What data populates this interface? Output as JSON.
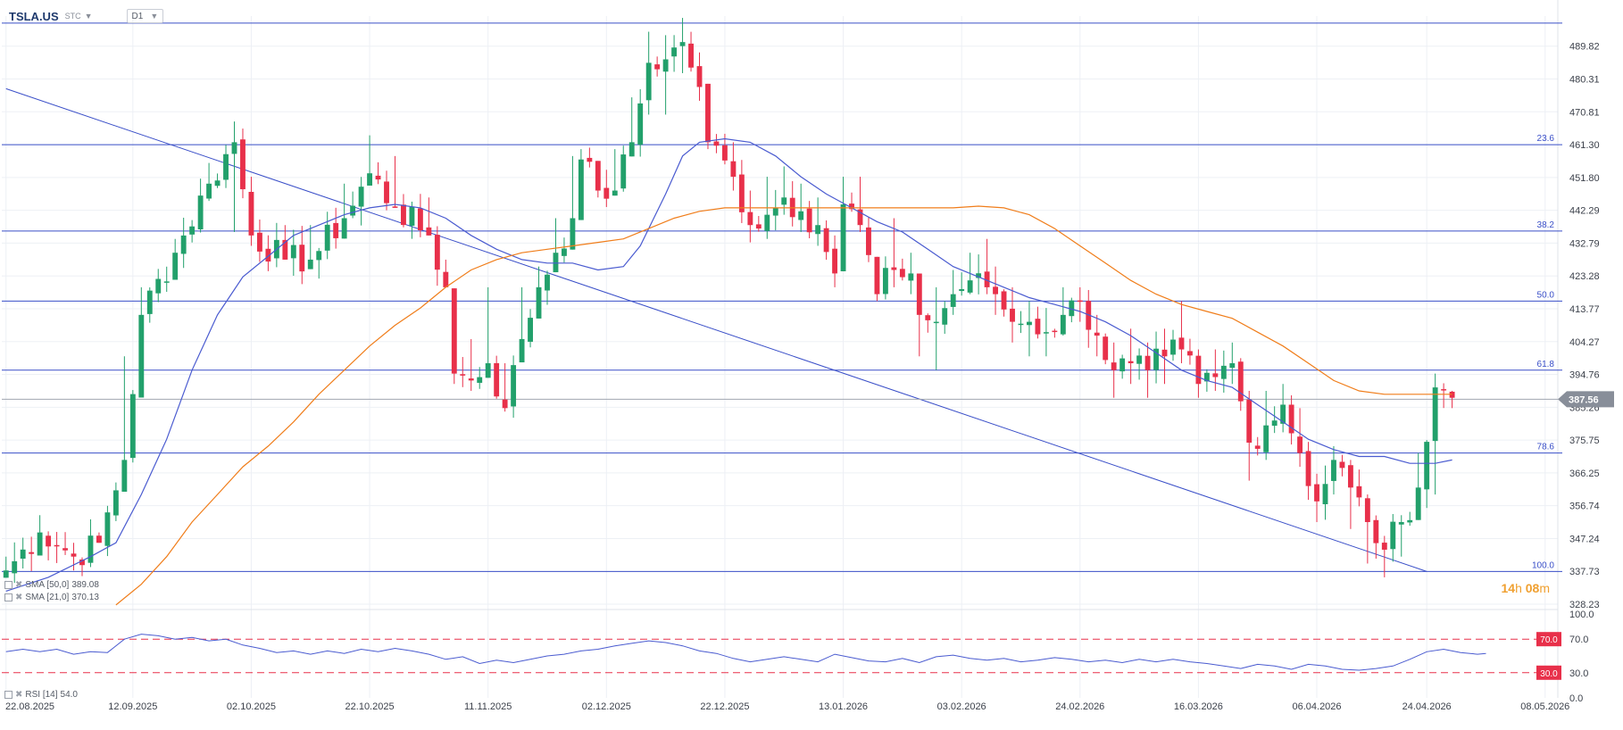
{
  "instrument": {
    "symbol": "TSLA.US",
    "source": "STC",
    "timeframe": "D1"
  },
  "countdown": {
    "hours": "14",
    "h_unit": "h",
    "minutes": "08",
    "m_unit": "m"
  },
  "colors": {
    "bull": "#22a06b",
    "bear": "#e8304a",
    "sma_fast": "#4a5bd0",
    "sma_slow": "#f07d1a",
    "fib_lines": "#3a4fc8",
    "grid": "#edf0f5",
    "price_tag": "#888e99",
    "rsi_line": "#4a5bd0",
    "rsi_level": "#e8304a"
  },
  "legend": {
    "sma50": {
      "label": "SMA [50,0]",
      "value": "389.08"
    },
    "sma20": {
      "label": "SMA [21,0]",
      "value": "370.13"
    },
    "rsi": {
      "label": "RSI [14]",
      "value": "54.0"
    }
  },
  "chart_data": [
    {
      "type": "candlestick",
      "price_axis": {
        "ticks": [
          489.82,
          480.31,
          470.81,
          461.3,
          451.8,
          442.29,
          432.79,
          423.28,
          413.77,
          404.27,
          394.76,
          385.26,
          375.75,
          366.25,
          356.74,
          347.24,
          337.73,
          328.23
        ],
        "ylim": [
          328.23,
          497.5
        ]
      },
      "last_price": 387.56,
      "x_axis": {
        "date_labels": [
          "22.08.2025",
          "12.09.2025",
          "02.10.2025",
          "22.10.2025",
          "11.11.2025",
          "02.12.2025",
          "22.12.2025",
          "13.01.2026",
          "03.02.2026",
          "24.02.2026",
          "16.03.2026",
          "06.04.2026",
          "24.04.2026",
          "08.05.2026"
        ],
        "label_bar_index": [
          0,
          15,
          29,
          43,
          57,
          71,
          85,
          99,
          113,
          127,
          141,
          155,
          168,
          182
        ],
        "bar_count": 172,
        "total_slots": 184
      },
      "fibonacci": [
        {
          "level": "23.6",
          "price": 461.3
        },
        {
          "level": "38.2",
          "price": 436.3
        },
        {
          "level": "50.0",
          "price": 416.0
        },
        {
          "level": "61.8",
          "price": 396.0
        },
        {
          "level": "78.6",
          "price": 372.0
        },
        {
          "level": "100.0",
          "price": 337.7
        }
      ],
      "top_line_price": 496.5,
      "trend_line": {
        "start": [
          0,
          477.5
        ],
        "end": [
          168,
          337.7
        ]
      },
      "anchors": [
        [
          0,
          338,
          342,
          338
        ],
        [
          4,
          349,
          354,
          349
        ],
        [
          8,
          342,
          346,
          338
        ],
        [
          11,
          346,
          349,
          346
        ],
        [
          14,
          370,
          400,
          370
        ],
        [
          16,
          412,
          420,
          412
        ],
        [
          20,
          430,
          434,
          430
        ],
        [
          24,
          450,
          456,
          445
        ],
        [
          27,
          462,
          468,
          436
        ],
        [
          29,
          435,
          452,
          432
        ],
        [
          33,
          428,
          438,
          428
        ],
        [
          36,
          428,
          438,
          428
        ],
        [
          40,
          440,
          450,
          440
        ],
        [
          43,
          453,
          464,
          453
        ],
        [
          46,
          443,
          458,
          443
        ],
        [
          50,
          435,
          446,
          435
        ],
        [
          52,
          420,
          428,
          420
        ],
        [
          53,
          395,
          400,
          392
        ],
        [
          55,
          393,
          405,
          390
        ],
        [
          57,
          398,
          420,
          398
        ],
        [
          59,
          385,
          398,
          384
        ],
        [
          61,
          405,
          420,
          405
        ],
        [
          63,
          420,
          426,
          420
        ],
        [
          65,
          430,
          440,
          430
        ],
        [
          67,
          440,
          458,
          440
        ],
        [
          68,
          457,
          460,
          455
        ],
        [
          70,
          448,
          455,
          446
        ],
        [
          72,
          448,
          460,
          448
        ],
        [
          74,
          462,
          475,
          460
        ],
        [
          76,
          485,
          494,
          470
        ],
        [
          78,
          486,
          493,
          470
        ],
        [
          80,
          491,
          498,
          482
        ],
        [
          82,
          478,
          488,
          474
        ],
        [
          83,
          462,
          466,
          460
        ],
        [
          86,
          452,
          462,
          448
        ],
        [
          88,
          438,
          448,
          433
        ],
        [
          90,
          441,
          452,
          434
        ],
        [
          92,
          446,
          455,
          441
        ],
        [
          94,
          442,
          450,
          436
        ],
        [
          96,
          438,
          446,
          432
        ],
        [
          98,
          424,
          435,
          420
        ],
        [
          99,
          444,
          452,
          432
        ],
        [
          101,
          438,
          452,
          436
        ],
        [
          103,
          418,
          428,
          416
        ],
        [
          105,
          425,
          440,
          420
        ],
        [
          107,
          424,
          430,
          418
        ],
        [
          108,
          412,
          420,
          400
        ],
        [
          110,
          410,
          420,
          396
        ],
        [
          112,
          418,
          425,
          412
        ],
        [
          114,
          422,
          430,
          418
        ],
        [
          116,
          420,
          434,
          418
        ],
        [
          117,
          418,
          426,
          412
        ],
        [
          119,
          410,
          420,
          404
        ],
        [
          121,
          410,
          416,
          400
        ],
        [
          123,
          407,
          414,
          400
        ],
        [
          125,
          412,
          420,
          406
        ],
        [
          127,
          416,
          420,
          410
        ],
        [
          129,
          406,
          412,
          400
        ],
        [
          131,
          396,
          404,
          388
        ],
        [
          133,
          398,
          408,
          392
        ],
        [
          135,
          396,
          404,
          388
        ],
        [
          137,
          400,
          408,
          392
        ],
        [
          139,
          402,
          416,
          398
        ],
        [
          141,
          392,
          402,
          388
        ],
        [
          143,
          394,
          402,
          390
        ],
        [
          145,
          398,
          404,
          392
        ],
        [
          147,
          375,
          390,
          364
        ],
        [
          149,
          380,
          390,
          370
        ],
        [
          151,
          386,
          392,
          378
        ],
        [
          153,
          372,
          385,
          368
        ],
        [
          155,
          358,
          366,
          352
        ],
        [
          157,
          370,
          374,
          360
        ],
        [
          159,
          362,
          370,
          350
        ],
        [
          161,
          352,
          360,
          340
        ],
        [
          163,
          344,
          348,
          336
        ],
        [
          165,
          352,
          354,
          342
        ],
        [
          167,
          362,
          372,
          356
        ],
        [
          169,
          391,
          395,
          360
        ],
        [
          171,
          388,
          390,
          385
        ]
      ],
      "sma_fast_points": [
        [
          0,
          332
        ],
        [
          5,
          336
        ],
        [
          10,
          342
        ],
        [
          13,
          346
        ],
        [
          16,
          360
        ],
        [
          19,
          376
        ],
        [
          22,
          396
        ],
        [
          25,
          412
        ],
        [
          28,
          423
        ],
        [
          31,
          429
        ],
        [
          34,
          435
        ],
        [
          37,
          438
        ],
        [
          40,
          441
        ],
        [
          43,
          443
        ],
        [
          46,
          444
        ],
        [
          49,
          443
        ],
        [
          52,
          440
        ],
        [
          55,
          435
        ],
        [
          58,
          431
        ],
        [
          61,
          428
        ],
        [
          64,
          427
        ],
        [
          67,
          427
        ],
        [
          70,
          425
        ],
        [
          73,
          426
        ],
        [
          75,
          432
        ],
        [
          78,
          447
        ],
        [
          80,
          458
        ],
        [
          82,
          462
        ],
        [
          85,
          463
        ],
        [
          88,
          462
        ],
        [
          91,
          458
        ],
        [
          94,
          452
        ],
        [
          97,
          447
        ],
        [
          100,
          443
        ],
        [
          103,
          439
        ],
        [
          106,
          436
        ],
        [
          109,
          431
        ],
        [
          112,
          426
        ],
        [
          115,
          423
        ],
        [
          118,
          420
        ],
        [
          121,
          417
        ],
        [
          124,
          415
        ],
        [
          127,
          413
        ],
        [
          130,
          410
        ],
        [
          133,
          406
        ],
        [
          136,
          401
        ],
        [
          139,
          396
        ],
        [
          142,
          393
        ],
        [
          145,
          391
        ],
        [
          148,
          386
        ],
        [
          151,
          381
        ],
        [
          154,
          376
        ],
        [
          157,
          373
        ],
        [
          160,
          371
        ],
        [
          163,
          371
        ],
        [
          166,
          369
        ],
        [
          169,
          369
        ],
        [
          171,
          370
        ]
      ],
      "sma_slow_points": [
        [
          13,
          328
        ],
        [
          16,
          334
        ],
        [
          19,
          342
        ],
        [
          22,
          352
        ],
        [
          25,
          360
        ],
        [
          28,
          368
        ],
        [
          31,
          374
        ],
        [
          34,
          381
        ],
        [
          37,
          389
        ],
        [
          40,
          396
        ],
        [
          43,
          403
        ],
        [
          46,
          409
        ],
        [
          49,
          414
        ],
        [
          52,
          420
        ],
        [
          55,
          425
        ],
        [
          58,
          428
        ],
        [
          61,
          430
        ],
        [
          64,
          431
        ],
        [
          67,
          432
        ],
        [
          70,
          433
        ],
        [
          73,
          434
        ],
        [
          76,
          437
        ],
        [
          79,
          440
        ],
        [
          82,
          442
        ],
        [
          85,
          443
        ],
        [
          88,
          443
        ],
        [
          91,
          443
        ],
        [
          94,
          443
        ],
        [
          97,
          443
        ],
        [
          100,
          443
        ],
        [
          103,
          443
        ],
        [
          106,
          443
        ],
        [
          109,
          443
        ],
        [
          112,
          443
        ],
        [
          115,
          443.5
        ],
        [
          118,
          443
        ],
        [
          121,
          441
        ],
        [
          124,
          437
        ],
        [
          127,
          432
        ],
        [
          130,
          427
        ],
        [
          133,
          422
        ],
        [
          136,
          418
        ],
        [
          139,
          415
        ],
        [
          142,
          413
        ],
        [
          145,
          411
        ],
        [
          148,
          407
        ],
        [
          151,
          403
        ],
        [
          154,
          398
        ],
        [
          157,
          393
        ],
        [
          160,
          390
        ],
        [
          163,
          389
        ],
        [
          166,
          389
        ],
        [
          169,
          389
        ],
        [
          171,
          389
        ]
      ]
    },
    {
      "type": "line",
      "name": "RSI [14]",
      "y_ticks": [
        100.0,
        70.0,
        30.0,
        0.0
      ],
      "levels": [
        70.0,
        30.0
      ],
      "ylim": [
        0,
        100
      ],
      "points": [
        [
          0,
          55
        ],
        [
          2,
          58
        ],
        [
          4,
          55
        ],
        [
          6,
          58
        ],
        [
          8,
          52
        ],
        [
          10,
          55
        ],
        [
          12,
          54
        ],
        [
          14,
          70
        ],
        [
          16,
          76
        ],
        [
          18,
          74
        ],
        [
          20,
          70
        ],
        [
          22,
          72
        ],
        [
          24,
          68
        ],
        [
          26,
          70
        ],
        [
          28,
          63
        ],
        [
          30,
          59
        ],
        [
          32,
          54
        ],
        [
          34,
          56
        ],
        [
          36,
          52
        ],
        [
          38,
          56
        ],
        [
          40,
          53
        ],
        [
          42,
          58
        ],
        [
          44,
          55
        ],
        [
          46,
          59
        ],
        [
          48,
          56
        ],
        [
          50,
          52
        ],
        [
          52,
          46
        ],
        [
          54,
          49
        ],
        [
          56,
          41
        ],
        [
          58,
          45
        ],
        [
          60,
          42
        ],
        [
          62,
          46
        ],
        [
          64,
          50
        ],
        [
          66,
          52
        ],
        [
          68,
          56
        ],
        [
          70,
          58
        ],
        [
          72,
          62
        ],
        [
          74,
          65
        ],
        [
          76,
          68
        ],
        [
          78,
          66
        ],
        [
          80,
          62
        ],
        [
          82,
          56
        ],
        [
          84,
          53
        ],
        [
          86,
          47
        ],
        [
          88,
          43
        ],
        [
          90,
          46
        ],
        [
          92,
          49
        ],
        [
          94,
          46
        ],
        [
          96,
          43
        ],
        [
          98,
          52
        ],
        [
          100,
          48
        ],
        [
          102,
          44
        ],
        [
          104,
          43
        ],
        [
          106,
          47
        ],
        [
          108,
          42
        ],
        [
          110,
          49
        ],
        [
          112,
          51
        ],
        [
          114,
          47
        ],
        [
          116,
          45
        ],
        [
          118,
          47
        ],
        [
          120,
          43
        ],
        [
          122,
          45
        ],
        [
          124,
          48
        ],
        [
          126,
          46
        ],
        [
          128,
          43
        ],
        [
          130,
          45
        ],
        [
          132,
          42
        ],
        [
          134,
          46
        ],
        [
          136,
          43
        ],
        [
          138,
          46
        ],
        [
          140,
          43
        ],
        [
          142,
          41
        ],
        [
          144,
          38
        ],
        [
          146,
          35
        ],
        [
          148,
          40
        ],
        [
          150,
          38
        ],
        [
          152,
          34
        ],
        [
          154,
          40
        ],
        [
          156,
          38
        ],
        [
          158,
          34
        ],
        [
          160,
          33
        ],
        [
          162,
          35
        ],
        [
          164,
          38
        ],
        [
          166,
          46
        ],
        [
          168,
          55
        ],
        [
          170,
          58
        ],
        [
          172,
          54
        ],
        [
          174,
          52
        ],
        [
          175,
          53
        ]
      ]
    }
  ]
}
